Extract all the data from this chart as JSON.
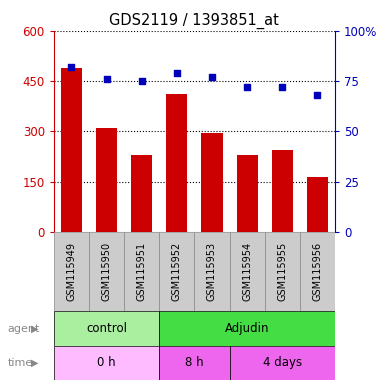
{
  "title": "GDS2119 / 1393851_at",
  "samples": [
    "GSM115949",
    "GSM115950",
    "GSM115951",
    "GSM115952",
    "GSM115953",
    "GSM115954",
    "GSM115955",
    "GSM115956"
  ],
  "counts": [
    490,
    310,
    230,
    410,
    295,
    230,
    245,
    165
  ],
  "percentile_ranks": [
    82,
    76,
    75,
    79,
    77,
    72,
    72,
    68
  ],
  "left_ylim": [
    0,
    600
  ],
  "left_yticks": [
    0,
    150,
    300,
    450,
    600
  ],
  "left_yticklabels": [
    "0",
    "150",
    "300",
    "450",
    "600"
  ],
  "right_ylim": [
    0,
    100
  ],
  "right_yticks": [
    0,
    25,
    50,
    75,
    100
  ],
  "right_yticklabels": [
    "0",
    "25",
    "50",
    "75",
    "100%"
  ],
  "bar_color": "#cc0000",
  "dot_color": "#0000bb",
  "dotted_line_color": "#000000",
  "agent_groups": [
    {
      "label": "control",
      "start": 0,
      "end": 3,
      "color": "#aaeea0"
    },
    {
      "label": "Adjudin",
      "start": 3,
      "end": 8,
      "color": "#44dd44"
    }
  ],
  "time_groups": [
    {
      "label": "0 h",
      "start": 0,
      "end": 3,
      "color": "#ffbbff"
    },
    {
      "label": "8 h",
      "start": 3,
      "end": 5,
      "color": "#ee66ee"
    },
    {
      "label": "4 days",
      "start": 5,
      "end": 8,
      "color": "#ee66ee"
    }
  ],
  "legend_count_color": "#cc0000",
  "legend_pct_color": "#0000bb",
  "left_axis_color": "#cc0000",
  "right_axis_color": "#0000bb",
  "label_bg_color": "#cccccc",
  "label_border_color": "#888888"
}
